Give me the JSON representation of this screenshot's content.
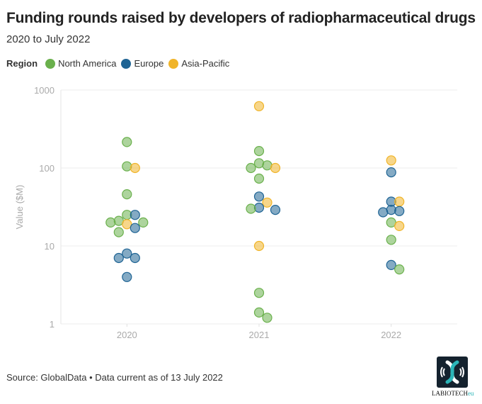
{
  "header": {
    "title": "Funding rounds raised by developers of radiopharmaceutical drugs",
    "subtitle": "2020 to July 2022"
  },
  "legend": {
    "label": "Region",
    "items": [
      {
        "name": "North America",
        "color": "#6ab04c"
      },
      {
        "name": "Europe",
        "color": "#1f6494"
      },
      {
        "name": "Asia-Pacific",
        "color": "#f0b429"
      }
    ]
  },
  "footer": {
    "source": "Source: GlobalData • Data current as of 13 July 2022",
    "logo_text": "LABIOTECH",
    "logo_suffix": "eu"
  },
  "chart_data": {
    "type": "scatter",
    "title": "Funding rounds raised by developers of radiopharmaceutical drugs",
    "subtitle": "2020 to July 2022",
    "xlabel": "",
    "ylabel": "Value ($M)",
    "yscale": "log",
    "ylim": [
      1,
      1000
    ],
    "yticks": [
      1,
      10,
      100,
      1000
    ],
    "ytick_labels": [
      "1",
      "10",
      "100",
      "1000"
    ],
    "categories": [
      "2020",
      "2021",
      "2022"
    ],
    "grid": true,
    "legend_position": "top-left",
    "series": [
      {
        "name": "North America",
        "color": "#6ab04c",
        "points": [
          {
            "x": "2020",
            "y": 215
          },
          {
            "x": "2020",
            "y": 105
          },
          {
            "x": "2020",
            "y": 46
          },
          {
            "x": "2020",
            "y": 25
          },
          {
            "x": "2020",
            "y": 21
          },
          {
            "x": "2020",
            "y": 20
          },
          {
            "x": "2020",
            "y": 20
          },
          {
            "x": "2020",
            "y": 15
          },
          {
            "x": "2021",
            "y": 165
          },
          {
            "x": "2021",
            "y": 115
          },
          {
            "x": "2021",
            "y": 108
          },
          {
            "x": "2021",
            "y": 100
          },
          {
            "x": "2021",
            "y": 73
          },
          {
            "x": "2021",
            "y": 30
          },
          {
            "x": "2021",
            "y": 2.5
          },
          {
            "x": "2021",
            "y": 1.4
          },
          {
            "x": "2021",
            "y": 1.2
          },
          {
            "x": "2022",
            "y": 20
          },
          {
            "x": "2022",
            "y": 12
          },
          {
            "x": "2022",
            "y": 5
          }
        ]
      },
      {
        "name": "Europe",
        "color": "#1f6494",
        "points": [
          {
            "x": "2020",
            "y": 25
          },
          {
            "x": "2020",
            "y": 17
          },
          {
            "x": "2020",
            "y": 8
          },
          {
            "x": "2020",
            "y": 7
          },
          {
            "x": "2020",
            "y": 7
          },
          {
            "x": "2020",
            "y": 4
          },
          {
            "x": "2021",
            "y": 43
          },
          {
            "x": "2021",
            "y": 31
          },
          {
            "x": "2021",
            "y": 29
          },
          {
            "x": "2022",
            "y": 88
          },
          {
            "x": "2022",
            "y": 37
          },
          {
            "x": "2022",
            "y": 29
          },
          {
            "x": "2022",
            "y": 28
          },
          {
            "x": "2022",
            "y": 27
          },
          {
            "x": "2022",
            "y": 5.7
          }
        ]
      },
      {
        "name": "Asia-Pacific",
        "color": "#f0b429",
        "points": [
          {
            "x": "2020",
            "y": 100
          },
          {
            "x": "2020",
            "y": 19
          },
          {
            "x": "2021",
            "y": 620
          },
          {
            "x": "2021",
            "y": 100
          },
          {
            "x": "2021",
            "y": 36
          },
          {
            "x": "2021",
            "y": 10
          },
          {
            "x": "2022",
            "y": 125
          },
          {
            "x": "2022",
            "y": 37
          },
          {
            "x": "2022",
            "y": 18
          }
        ]
      }
    ]
  }
}
